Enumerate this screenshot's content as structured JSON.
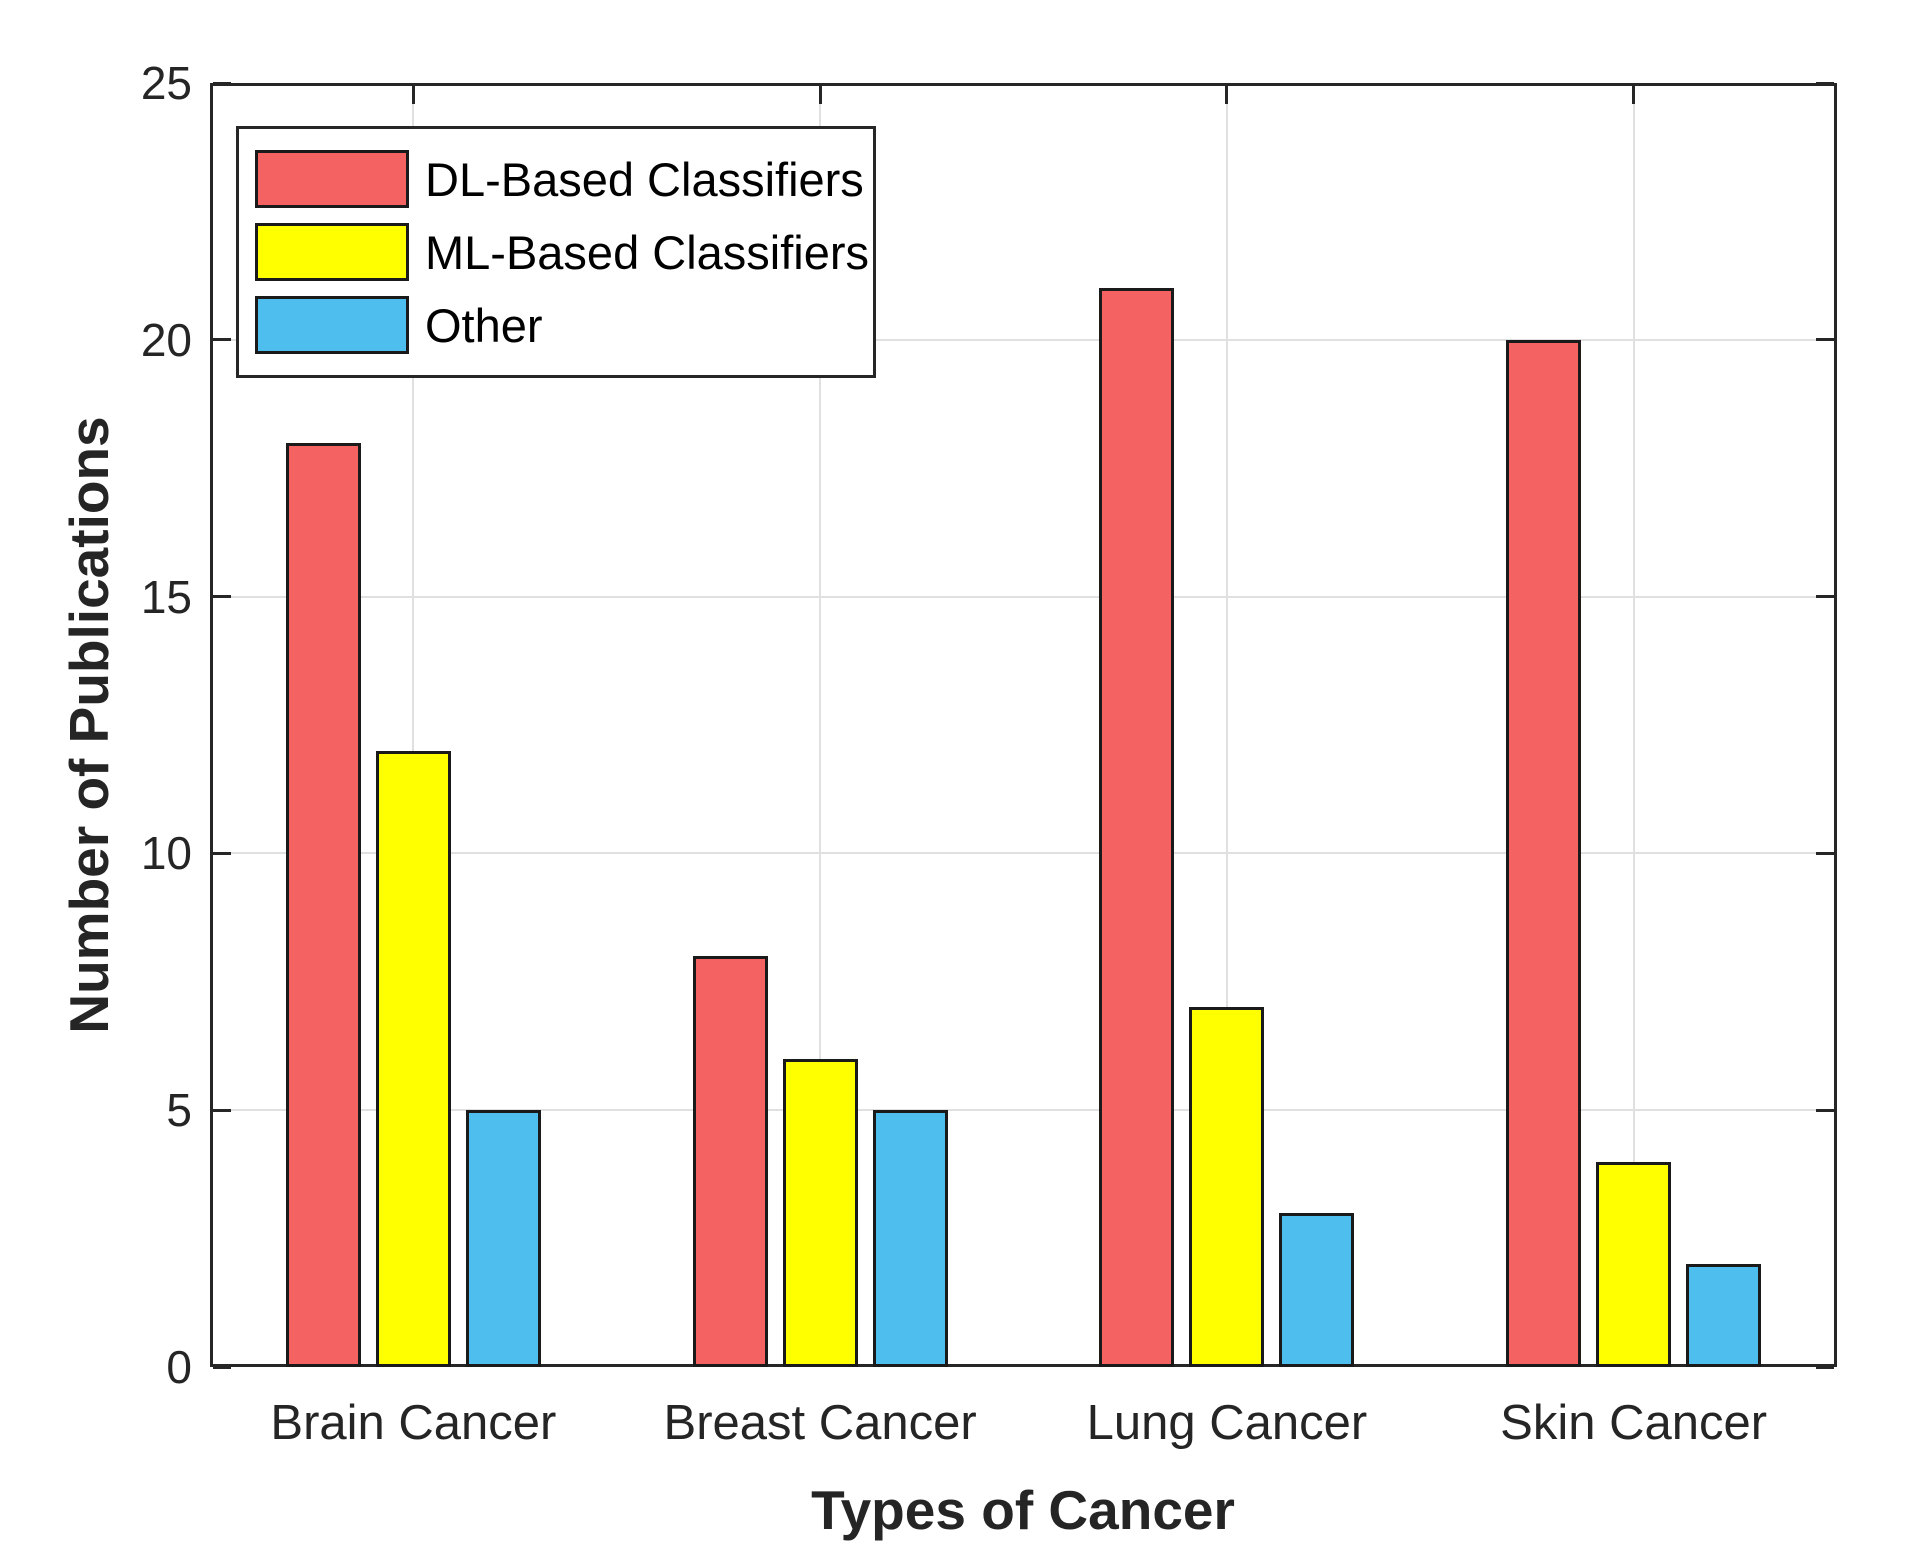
{
  "chart_data": {
    "type": "bar",
    "title": "",
    "xlabel": "Types of Cancer",
    "ylabel": "Number of Publications",
    "categories": [
      "Brain Cancer",
      "Breast Cancer",
      "Lung Cancer",
      "Skin Cancer"
    ],
    "series": [
      {
        "name": "DL-Based Classifiers",
        "color": "#F56262",
        "values": [
          18,
          8,
          21,
          20
        ]
      },
      {
        "name": "ML-Based Classifiers",
        "color": "#FFFF00",
        "values": [
          12,
          6,
          7,
          4
        ]
      },
      {
        "name": "Other",
        "color": "#4DBEEE",
        "values": [
          5,
          5,
          3,
          2
        ]
      }
    ],
    "ylim": [
      0,
      25
    ],
    "yticks": [
      0,
      5,
      10,
      15,
      20,
      25
    ],
    "grid": true,
    "legend_position": "top-left",
    "colors": {
      "bar_edge": "#1a1a1a",
      "grid": "#e0e0e0",
      "axis": "#262626",
      "background": "#ffffff"
    }
  }
}
